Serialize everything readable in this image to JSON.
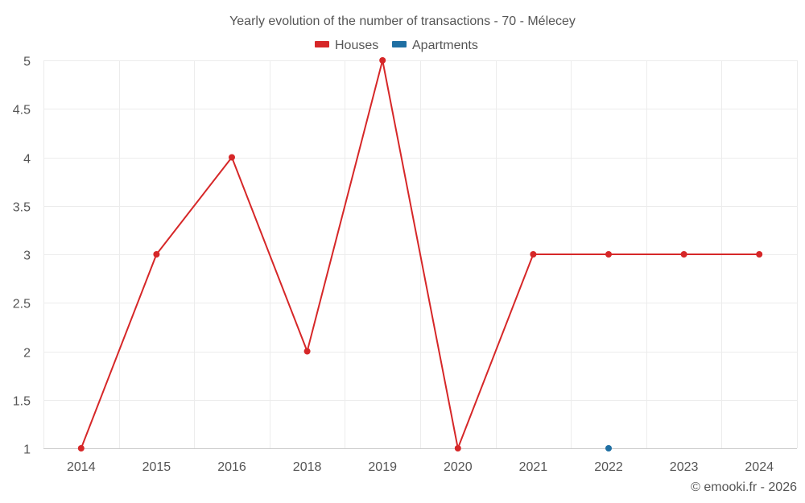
{
  "chart_data": {
    "type": "line",
    "title": "Yearly evolution of the number of transactions - 70 - Mélecey",
    "categories": [
      "2014",
      "2015",
      "2016",
      "2018",
      "2019",
      "2020",
      "2021",
      "2022",
      "2023",
      "2024"
    ],
    "series": [
      {
        "name": "Houses",
        "color": "#d62728",
        "values": [
          1,
          3,
          4,
          2,
          5,
          1,
          3,
          3,
          3,
          3
        ]
      },
      {
        "name": "Apartments",
        "color": "#1f6fa3",
        "values": [
          null,
          null,
          null,
          null,
          null,
          null,
          null,
          1,
          null,
          null
        ]
      }
    ],
    "ylim": [
      1,
      5
    ],
    "yticks": [
      "1",
      "1.5",
      "2",
      "2.5",
      "3",
      "3.5",
      "4",
      "4.5",
      "5"
    ],
    "xlabel": "",
    "ylabel": "",
    "grid": true,
    "legend": "top-center"
  },
  "credit": "© emooki.fr - 2026"
}
